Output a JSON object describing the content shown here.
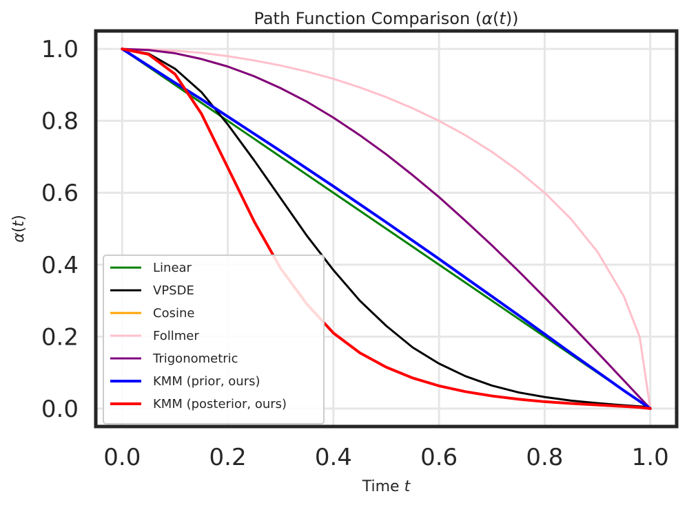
{
  "chart_data": {
    "type": "line",
    "title": "Path Function Comparison (α(t))",
    "title_parts": {
      "prefix": "Path Function Comparison (",
      "symbol": "α",
      "open": "(",
      "var": "t",
      "close": "))"
    },
    "xlabel": "Time t",
    "xlabel_parts": {
      "prefix": "Time ",
      "var": "t"
    },
    "ylabel": "α(t)",
    "ylabel_parts": {
      "symbol": "α",
      "open": "(",
      "var": "t",
      "close": ")"
    },
    "xlim": [
      -0.05,
      1.05
    ],
    "ylim": [
      -0.05,
      1.05
    ],
    "grid": true,
    "legend_position": "lower-left",
    "x_ticks": [
      0.0,
      0.2,
      0.4,
      0.6,
      0.8,
      1.0
    ],
    "x_tick_labels": [
      "0.0",
      "0.2",
      "0.4",
      "0.6",
      "0.8",
      "1.0"
    ],
    "y_ticks": [
      0.0,
      0.2,
      0.4,
      0.6,
      0.8,
      1.0
    ],
    "y_tick_labels": [
      "0.0",
      "0.2",
      "0.4",
      "0.6",
      "0.8",
      "1.0"
    ],
    "x": [
      0.0,
      0.05,
      0.1,
      0.15,
      0.2,
      0.25,
      0.3,
      0.35,
      0.4,
      0.45,
      0.5,
      0.55,
      0.6,
      0.65,
      0.7,
      0.75,
      0.8,
      0.85,
      0.9,
      0.95,
      0.98,
      1.0
    ],
    "series": [
      {
        "name": "Linear",
        "color": "#008000",
        "width": 3,
        "values": [
          1.0,
          0.95,
          0.9,
          0.85,
          0.8,
          0.75,
          0.7,
          0.65,
          0.6,
          0.55,
          0.5,
          0.45,
          0.4,
          0.35,
          0.3,
          0.25,
          0.2,
          0.15,
          0.1,
          0.05,
          0.02,
          0.0
        ]
      },
      {
        "name": "VPSDE",
        "color": "#000000",
        "width": 3,
        "values": [
          1.0,
          0.987,
          0.945,
          0.88,
          0.79,
          0.69,
          0.585,
          0.48,
          0.385,
          0.3,
          0.23,
          0.17,
          0.125,
          0.09,
          0.064,
          0.045,
          0.032,
          0.022,
          0.015,
          0.009,
          0.006,
          0.004
        ]
      },
      {
        "name": "Cosine",
        "color": "#FFA500",
        "width": 3,
        "values": [
          1.0,
          0.997,
          0.988,
          0.972,
          0.951,
          0.924,
          0.891,
          0.853,
          0.809,
          0.76,
          0.707,
          0.649,
          0.588,
          0.522,
          0.454,
          0.383,
          0.309,
          0.233,
          0.156,
          0.078,
          0.031,
          0.0
        ]
      },
      {
        "name": "Follmer",
        "color": "#FFC0CB",
        "width": 3,
        "values": [
          1.0,
          0.999,
          0.995,
          0.989,
          0.98,
          0.968,
          0.954,
          0.937,
          0.917,
          0.893,
          0.866,
          0.835,
          0.8,
          0.76,
          0.714,
          0.661,
          0.6,
          0.527,
          0.436,
          0.312,
          0.199,
          0.0
        ]
      },
      {
        "name": "Trigonometric",
        "color": "#800080",
        "width": 3,
        "values": [
          1.0,
          0.997,
          0.988,
          0.972,
          0.951,
          0.924,
          0.891,
          0.853,
          0.809,
          0.76,
          0.707,
          0.649,
          0.588,
          0.522,
          0.454,
          0.383,
          0.309,
          0.233,
          0.156,
          0.078,
          0.031,
          0.0
        ]
      },
      {
        "name": "KMM (prior, ours)",
        "color": "#0000FF",
        "width": 4,
        "values": [
          1.0,
          0.953,
          0.906,
          0.86,
          0.812,
          0.764,
          0.716,
          0.667,
          0.618,
          0.568,
          0.518,
          0.467,
          0.416,
          0.364,
          0.312,
          0.26,
          0.207,
          0.154,
          0.102,
          0.05,
          0.02,
          0.0
        ]
      },
      {
        "name": "KMM (posterior, ours)",
        "color": "#FF0000",
        "width": 4,
        "values": [
          1.0,
          0.985,
          0.93,
          0.82,
          0.67,
          0.52,
          0.39,
          0.29,
          0.21,
          0.155,
          0.115,
          0.085,
          0.063,
          0.047,
          0.035,
          0.026,
          0.019,
          0.014,
          0.01,
          0.006,
          0.003,
          0.0
        ]
      }
    ]
  }
}
